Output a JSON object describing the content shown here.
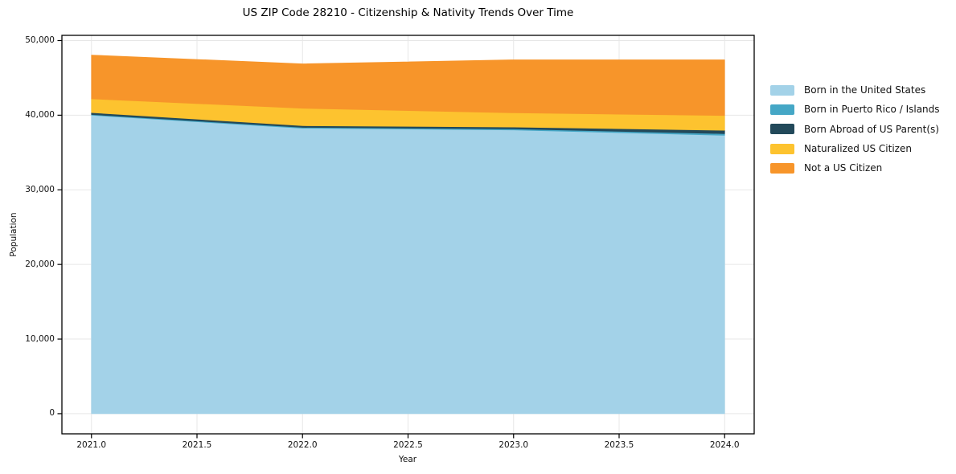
{
  "figure": {
    "title": "US ZIP Code 28210 - Citizenship & Nativity Trends Over Time",
    "xlabel": "Year",
    "ylabel": "Population"
  },
  "chart_data": {
    "type": "area",
    "stacked": true,
    "title": "US ZIP Code 28210 - Citizenship & Nativity Trends Over Time",
    "xlabel": "Year",
    "ylabel": "Population",
    "x": [
      2021,
      2022,
      2023,
      2024
    ],
    "series": [
      {
        "name": "Born in the United States",
        "color": "#a3d2e8",
        "values": [
          40000,
          38250,
          38030,
          37310
        ]
      },
      {
        "name": "Born in Puerto Rico / Islands",
        "color": "#45a7c6",
        "values": [
          100,
          120,
          140,
          220
        ]
      },
      {
        "name": "Born Abroad of US Parent(s)",
        "color": "#22495a",
        "values": [
          250,
          230,
          250,
          460
        ]
      },
      {
        "name": "Naturalized US Citizen",
        "color": "#fdc32f",
        "values": [
          1850,
          2330,
          1900,
          1980
        ]
      },
      {
        "name": "Not a US Citizen",
        "color": "#f7952a",
        "values": [
          5850,
          5950,
          7100,
          7450
        ]
      }
    ],
    "totals": [
      48050,
      46880,
      47420,
      47420
    ],
    "xlim": [
      2020.86,
      2024.14
    ],
    "ylim": [
      -2700,
      50700
    ],
    "x_ticks": [
      2021.0,
      2021.5,
      2022.0,
      2022.5,
      2023.0,
      2023.5,
      2024.0
    ],
    "x_tick_labels": [
      "2021.0",
      "2021.5",
      "2022.0",
      "2022.5",
      "2023.0",
      "2023.5",
      "2024.0"
    ],
    "y_ticks": [
      0,
      10000,
      20000,
      30000,
      40000,
      50000
    ],
    "y_tick_labels": [
      "0",
      "10,000",
      "20,000",
      "30,000",
      "40,000",
      "50,000"
    ],
    "grid": true,
    "legend_position": "right-outside"
  },
  "colors": {
    "background": "#ffffff",
    "grid": "#e7e7e7",
    "frame": "#000000",
    "text": "#111111"
  }
}
